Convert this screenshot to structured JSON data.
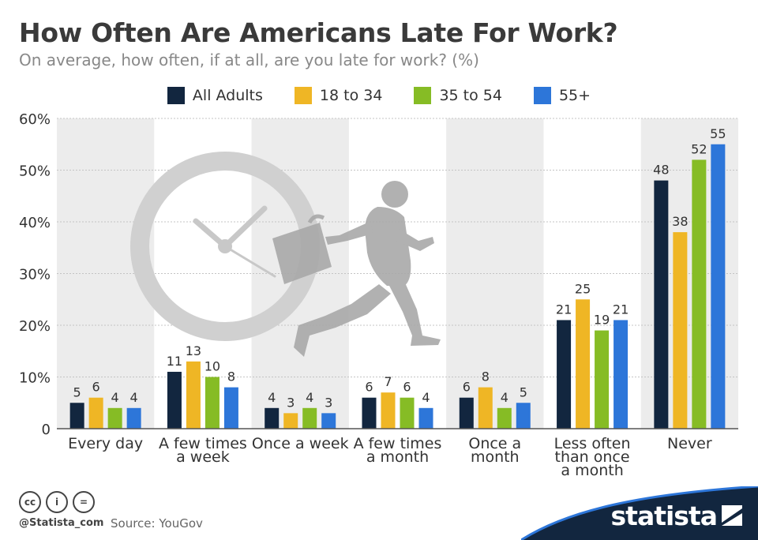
{
  "header": {
    "title": "How Often Are Americans Late For Work?",
    "subtitle": "On average, how often, if at all, are you late for work? (%)"
  },
  "footer": {
    "handle": "@Statista_com",
    "source": "Source: YouGov",
    "brand": "statista",
    "license_icons": [
      "cc-icon",
      "by-icon",
      "nd-icon"
    ],
    "license_icon_glyphs": [
      "cc",
      "i",
      "="
    ]
  },
  "chart_data": {
    "type": "bar",
    "title": "How Often Are Americans Late For Work?",
    "subtitle": "On average, how often, if at all, are you late for work? (%)",
    "categories": [
      [
        "Every day"
      ],
      [
        "A few times",
        "a week"
      ],
      [
        "Once a week"
      ],
      [
        "A few times",
        "a month"
      ],
      [
        "Once a",
        "month"
      ],
      [
        "Less often",
        "than once",
        "a month"
      ],
      [
        "Never"
      ]
    ],
    "series": [
      {
        "name": "All Adults",
        "color": "#12263f",
        "values": [
          5,
          11,
          4,
          6,
          6,
          21,
          48
        ]
      },
      {
        "name": "18 to 34",
        "color": "#efb625",
        "values": [
          6,
          13,
          3,
          7,
          8,
          25,
          38
        ]
      },
      {
        "name": "35 to 54",
        "color": "#86bc25",
        "values": [
          4,
          10,
          4,
          6,
          4,
          19,
          52
        ]
      },
      {
        "name": "55+",
        "color": "#2d76d9",
        "values": [
          4,
          8,
          3,
          4,
          5,
          21,
          55
        ]
      }
    ],
    "yticks": [
      "0",
      "10%",
      "20%",
      "30%",
      "40%",
      "50%",
      "60%"
    ],
    "ylim": [
      0,
      60
    ],
    "grid": true,
    "legend_position": "top-center",
    "xlabel": "",
    "ylabel": ""
  }
}
